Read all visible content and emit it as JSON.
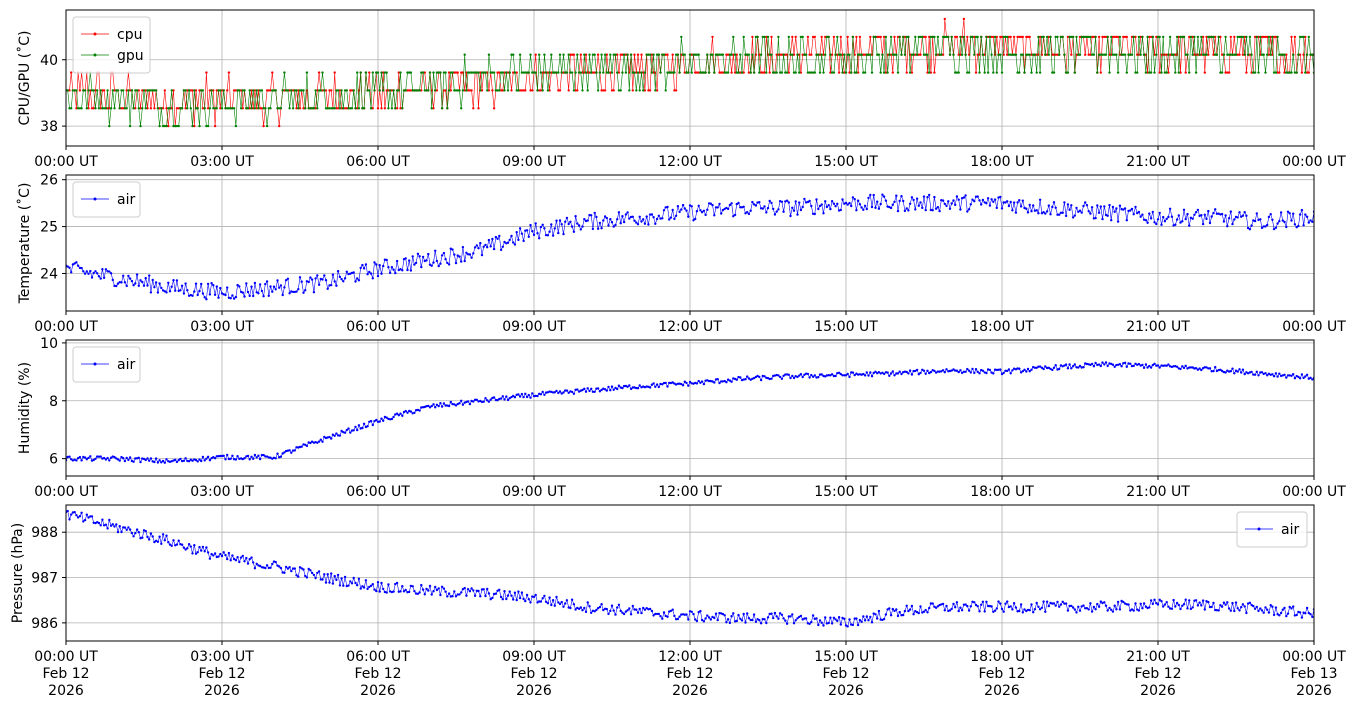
{
  "chart_data": [
    {
      "type": "line",
      "ylabel": "CPU/GPU (˚C)",
      "ylim": [
        37.4,
        41.5
      ],
      "yticks": [
        38,
        40
      ],
      "xlim_hours": [
        0,
        24
      ],
      "xtick_labels": [
        "00:00 UT",
        "03:00 UT",
        "06:00 UT",
        "09:00 UT",
        "12:00 UT",
        "15:00 UT",
        "18:00 UT",
        "21:00 UT",
        "00:00 UT"
      ],
      "grid": true,
      "legend_position": "upper-left",
      "series": [
        {
          "name": "cpu",
          "color": "#ff0000",
          "x_hours": [
            0,
            1,
            2,
            3,
            4,
            5,
            6,
            7,
            8,
            9,
            10,
            11,
            12,
            13,
            14,
            15,
            16,
            17,
            18,
            19,
            20,
            21,
            22,
            23,
            24
          ],
          "values": [
            39.1,
            38.9,
            38.8,
            38.8,
            38.8,
            38.9,
            39.0,
            39.1,
            39.2,
            39.4,
            39.6,
            39.7,
            39.9,
            40.0,
            40.1,
            40.2,
            40.3,
            40.5,
            40.4,
            40.3,
            40.3,
            40.3,
            40.2,
            40.2,
            40.2
          ]
        },
        {
          "name": "gpu",
          "color": "#008000",
          "x_hours": [
            0,
            1,
            2,
            3,
            4,
            5,
            6,
            7,
            8,
            9,
            10,
            11,
            12,
            13,
            14,
            15,
            16,
            17,
            18,
            19,
            20,
            21,
            22,
            23,
            24
          ],
          "values": [
            38.9,
            38.8,
            38.7,
            38.7,
            38.8,
            38.9,
            39.0,
            39.2,
            39.4,
            39.6,
            39.7,
            39.8,
            39.9,
            40.0,
            40.0,
            40.1,
            40.2,
            40.4,
            40.3,
            40.2,
            40.3,
            40.2,
            40.2,
            40.1,
            40.1
          ]
        }
      ]
    },
    {
      "type": "line",
      "ylabel": "Temperature (˚C)",
      "ylim": [
        23.2,
        26.1
      ],
      "yticks": [
        24,
        25,
        26
      ],
      "xlim_hours": [
        0,
        24
      ],
      "xtick_labels": [
        "00:00 UT",
        "03:00 UT",
        "06:00 UT",
        "09:00 UT",
        "12:00 UT",
        "15:00 UT",
        "18:00 UT",
        "21:00 UT",
        "00:00 UT"
      ],
      "grid": true,
      "legend_position": "upper-left",
      "series": [
        {
          "name": "air",
          "color": "#0000ff",
          "x_hours": [
            0,
            1,
            2,
            3,
            4,
            5,
            6,
            7,
            8,
            9,
            10,
            11,
            12,
            13,
            14,
            15,
            16,
            17,
            18,
            19,
            20,
            21,
            22,
            23,
            24
          ],
          "values": [
            24.1,
            23.9,
            23.7,
            23.6,
            23.7,
            23.8,
            24.1,
            24.3,
            24.5,
            24.9,
            25.1,
            25.2,
            25.3,
            25.4,
            25.4,
            25.5,
            25.5,
            25.5,
            25.5,
            25.4,
            25.3,
            25.2,
            25.2,
            25.1,
            25.2
          ]
        }
      ]
    },
    {
      "type": "line",
      "ylabel": "Humidity (%)",
      "ylim": [
        5.4,
        10.1
      ],
      "yticks": [
        6,
        8,
        10
      ],
      "xlim_hours": [
        0,
        24
      ],
      "xtick_labels": [
        "00:00 UT",
        "03:00 UT",
        "06:00 UT",
        "09:00 UT",
        "12:00 UT",
        "15:00 UT",
        "18:00 UT",
        "21:00 UT",
        "00:00 UT"
      ],
      "grid": true,
      "legend_position": "upper-left",
      "series": [
        {
          "name": "air",
          "color": "#0000ff",
          "x_hours": [
            0,
            1,
            2,
            3,
            4,
            5,
            6,
            7,
            8,
            9,
            10,
            11,
            12,
            13,
            14,
            15,
            16,
            17,
            18,
            19,
            20,
            21,
            22,
            23,
            24
          ],
          "values": [
            6.0,
            6.0,
            5.9,
            6.05,
            6.05,
            6.7,
            7.3,
            7.8,
            8.0,
            8.2,
            8.35,
            8.5,
            8.6,
            8.75,
            8.85,
            8.9,
            8.95,
            9.05,
            9.0,
            9.15,
            9.25,
            9.2,
            9.1,
            8.95,
            8.8
          ]
        }
      ]
    },
    {
      "type": "line",
      "ylabel": "Pressure (hPa)",
      "ylim": [
        985.6,
        988.6
      ],
      "yticks": [
        986,
        987,
        988
      ],
      "xlim_hours": [
        0,
        24
      ],
      "xtick_labels": [
        "00:00 UT\nFeb 12\n2026",
        "03:00 UT\nFeb 12\n2026",
        "06:00 UT\nFeb 12\n2026",
        "09:00 UT\nFeb 12\n2026",
        "12:00 UT\nFeb 12\n2026",
        "15:00 UT\nFeb 12\n2026",
        "18:00 UT\nFeb 12\n2026",
        "21:00 UT\nFeb 12\n2026",
        "00:00 UT\nFeb 13\n2026"
      ],
      "grid": true,
      "legend_position": "upper-right",
      "series": [
        {
          "name": "air",
          "color": "#0000ff",
          "x_hours": [
            0,
            1,
            2,
            3,
            4,
            5,
            6,
            7,
            8,
            9,
            10,
            11,
            12,
            13,
            14,
            15,
            16,
            17,
            18,
            19,
            20,
            21,
            22,
            23,
            24
          ],
          "values": [
            988.4,
            988.1,
            987.8,
            987.45,
            987.25,
            987.0,
            986.8,
            986.7,
            986.65,
            986.55,
            986.35,
            986.25,
            986.15,
            986.1,
            986.1,
            986.0,
            986.25,
            986.35,
            986.35,
            986.35,
            986.35,
            986.4,
            986.4,
            986.3,
            986.2
          ]
        }
      ]
    }
  ]
}
